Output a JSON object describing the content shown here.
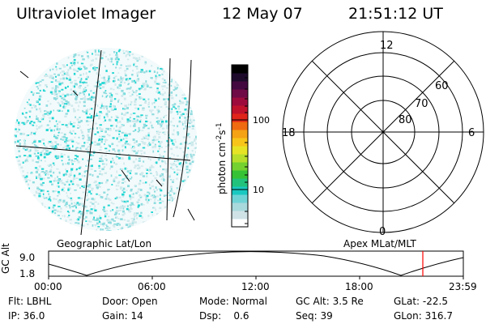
{
  "header": {
    "instrument": "Ultraviolet Imager",
    "date": "12 May 07",
    "time": "21:51:12 UT"
  },
  "left_panel": {
    "caption": "Geographic Lat/Lon"
  },
  "colorbar": {
    "unit_label": "photon cm",
    "unit_sup1": "-2",
    "unit_mid": "s",
    "unit_sup2": "-1",
    "ticks": [
      "100",
      "10"
    ],
    "colors": [
      "#ffffff",
      "#cfe3e6",
      "#a8d9dd",
      "#6fd3d6",
      "#19c8c0",
      "#22c27c",
      "#36c236",
      "#74d12f",
      "#b6de2a",
      "#e6e325",
      "#f7c51a",
      "#f5a214",
      "#ef6a10",
      "#e0241a",
      "#c1122b",
      "#9d0b3c",
      "#6f0a46",
      "#43083f",
      "#1d0a2b",
      "#000000"
    ]
  },
  "polar_panel": {
    "caption": "Apex MLat/MLT",
    "mlt_labels": [
      "12",
      "18",
      "6",
      "0"
    ],
    "lat_labels": [
      "60",
      "70",
      "80"
    ]
  },
  "orbit_panel": {
    "y_axis_label": "GC Alt",
    "y_ticks": [
      "9.0",
      "1.8"
    ],
    "x_ticks": [
      "00:00",
      "06:00",
      "12:00",
      "18:00",
      "23:59"
    ]
  },
  "status": {
    "flt_label": "Flt:",
    "flt_value": "LBHL",
    "ip_label": "IP:",
    "ip_value": "36.0",
    "door_label": "Door:",
    "door_value": "Open",
    "gain_label": "Gain:",
    "gain_value": "14",
    "mode_label": "Mode:",
    "mode_value": "Normal",
    "dsp_label": "Dsp:",
    "dsp_value": "0.6",
    "gcalt_label": "GC Alt:",
    "gcalt_value": "3.5 Re",
    "seq_label": "Seq:",
    "seq_value": "39",
    "glat_label": "GLat:",
    "glat_value": "-22.5",
    "glon_label": "GLon:",
    "glon_value": "316.7"
  },
  "accent_colors": {
    "marker": "#ff0000",
    "speckle_light": "#cfe9ec",
    "speckle_mid": "#8fdcdf",
    "speckle_cyan": "#21d6d3"
  }
}
